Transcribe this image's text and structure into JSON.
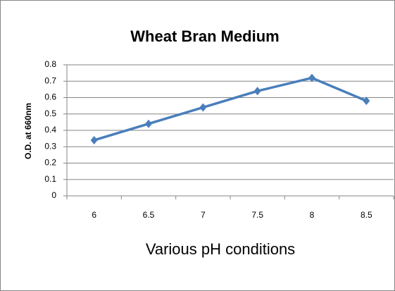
{
  "chart_data": {
    "type": "line",
    "title": "Wheat Bran Medium",
    "x_label": "Various pH conditions",
    "y_label": "O.D. at 660nm",
    "categories": [
      "6",
      "6.5",
      "7",
      "7.5",
      "8",
      "8.5"
    ],
    "series": [
      {
        "name": "Wheat Bran Medium",
        "color": "#4a7ebb",
        "values": [
          0.34,
          0.44,
          0.54,
          0.64,
          0.72,
          0.58
        ]
      }
    ],
    "ylim": [
      0,
      0.8
    ],
    "yticks": [
      0,
      0.1,
      0.2,
      0.3,
      0.4,
      0.5,
      0.6,
      0.7,
      0.8
    ],
    "grid": true
  }
}
